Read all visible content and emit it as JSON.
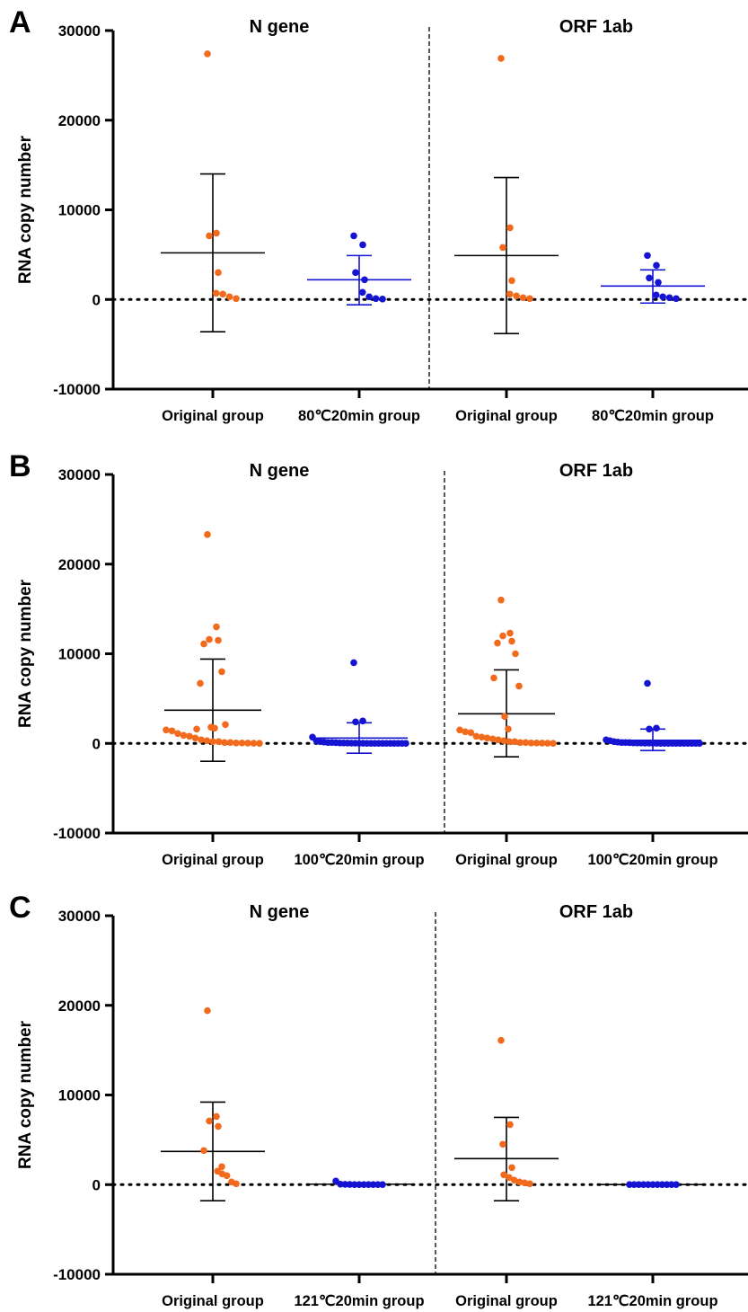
{
  "chart_data": [
    {
      "type": "scatter",
      "panel": "A",
      "ylabel": "RNA copy number",
      "ylim": [
        -10000,
        30000
      ],
      "yticks": [
        30000,
        20000,
        10000,
        0,
        -10000
      ],
      "yticklabels": [
        "30000",
        "20000",
        "10000",
        "0",
        "-10000"
      ],
      "sections": [
        "N gene",
        "ORF 1ab"
      ],
      "categories": [
        "Original group",
        "80℃20min group",
        "Original group",
        "80℃20min group"
      ],
      "colors": {
        "original": "#F26A1B",
        "treated": "#1414D2",
        "treated_error": "#1414D2",
        "original_error": "#000000"
      },
      "groups": [
        {
          "values": [
            27400,
            7400,
            7100,
            3000,
            700,
            600,
            300,
            100
          ],
          "mean": 5200,
          "sd_low": -3600,
          "sd_high": 14000
        },
        {
          "values": [
            7100,
            6100,
            3000,
            2200,
            800,
            300,
            100,
            50
          ],
          "mean": 2200,
          "sd_low": -600,
          "sd_high": 4900
        },
        {
          "values": [
            26900,
            8000,
            5800,
            2100,
            600,
            400,
            200,
            100
          ],
          "mean": 4900,
          "sd_low": -3800,
          "sd_high": 13600
        },
        {
          "values": [
            4900,
            3800,
            2400,
            1900,
            500,
            300,
            200,
            100
          ],
          "mean": 1500,
          "sd_low": -400,
          "sd_high": 3300
        }
      ]
    },
    {
      "type": "scatter",
      "panel": "B",
      "ylabel": "RNA copy number",
      "ylim": [
        -10000,
        30000
      ],
      "yticks": [
        30000,
        20000,
        10000,
        0,
        -10000
      ],
      "yticklabels": [
        "30000",
        "20000",
        "10000",
        "0",
        "-10000"
      ],
      "sections": [
        "N gene",
        "ORF 1ab"
      ],
      "categories": [
        "Original group",
        "100℃20min group",
        "Original group",
        "100℃20min group"
      ],
      "colors": {
        "original": "#F26A1B",
        "treated": "#1414D2",
        "treated_error": "#1414D2",
        "original_error": "#000000"
      },
      "groups": [
        {
          "values": [
            23300,
            13000,
            11600,
            11500,
            11100,
            8000,
            6700,
            2100,
            1800,
            1700,
            1600,
            1500,
            1400,
            1100,
            900,
            800,
            600,
            400,
            300,
            200,
            200,
            100,
            100,
            50,
            50,
            30,
            20,
            10
          ],
          "mean": 3700,
          "sd_low": -2000,
          "sd_high": 9400
        },
        {
          "values": [
            9000,
            2500,
            2400,
            700,
            300,
            200,
            150,
            100,
            100,
            80,
            60,
            50,
            40,
            30,
            30,
            20,
            20,
            10,
            10,
            10,
            10,
            5,
            5,
            5,
            5,
            5,
            5,
            5
          ],
          "mean": 600,
          "sd_low": -1100,
          "sd_high": 2300
        },
        {
          "values": [
            16000,
            12300,
            12000,
            11400,
            11200,
            10000,
            7300,
            6400,
            3000,
            1600,
            1500,
            1300,
            1200,
            800,
            700,
            600,
            500,
            400,
            300,
            200,
            200,
            100,
            100,
            50,
            50,
            30,
            20,
            10
          ],
          "mean": 3300,
          "sd_low": -1500,
          "sd_high": 8200
        },
        {
          "values": [
            6700,
            1700,
            1600,
            400,
            300,
            200,
            150,
            100,
            100,
            80,
            60,
            50,
            40,
            30,
            30,
            20,
            20,
            10,
            10,
            10,
            10,
            5,
            5,
            5,
            5,
            5,
            5,
            5
          ],
          "mean": 350,
          "sd_low": -800,
          "sd_high": 1600
        }
      ]
    },
    {
      "type": "scatter",
      "panel": "C",
      "ylabel": "RNA copy number",
      "ylim": [
        -10000,
        30000
      ],
      "yticks": [
        30000,
        20000,
        10000,
        0,
        -10000
      ],
      "yticklabels": [
        "30000",
        "20000",
        "10000",
        "0",
        "-10000"
      ],
      "sections": [
        "N gene",
        "ORF 1ab"
      ],
      "categories": [
        "Original group",
        "121℃20min group",
        "Original group",
        "121℃20min group"
      ],
      "colors": {
        "original": "#F26A1B",
        "treated": "#1414D2",
        "treated_error": "#000000",
        "original_error": "#000000"
      },
      "groups": [
        {
          "values": [
            19400,
            7600,
            7100,
            6500,
            3800,
            2000,
            1500,
            1200,
            1000,
            300,
            100
          ],
          "mean": 3700,
          "sd_low": -1800,
          "sd_high": 9200
        },
        {
          "values": [
            400,
            50,
            30,
            20,
            10,
            10,
            5,
            5,
            5,
            5,
            5
          ],
          "mean": 50,
          "sd_low": 0,
          "sd_high": 150
        },
        {
          "values": [
            16100,
            6700,
            4500,
            1900,
            1100,
            800,
            500,
            300,
            200,
            100
          ],
          "mean": 2900,
          "sd_low": -1800,
          "sd_high": 7500
        },
        {
          "values": [
            10,
            10,
            5,
            5,
            5,
            5,
            5,
            5,
            5,
            5,
            5
          ],
          "mean": 5,
          "sd_low": 0,
          "sd_high": 20
        }
      ]
    }
  ]
}
